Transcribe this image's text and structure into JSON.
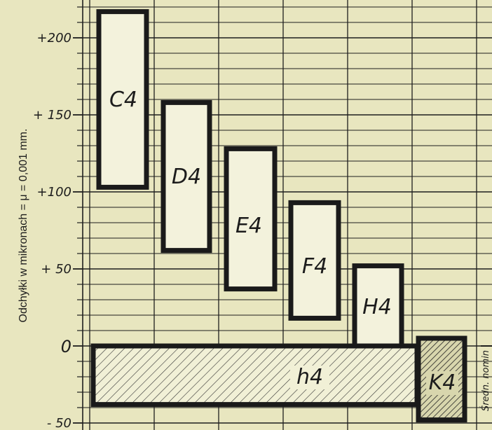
{
  "chart_data": {
    "type": "bar",
    "ylabel": "Odchyłki w mikronach = μ = 0,001 mm.",
    "ylim": [
      -50,
      220
    ],
    "yticks": [
      {
        "value": 200,
        "label": "+200"
      },
      {
        "value": 150,
        "label": "+ 150"
      },
      {
        "value": 100,
        "label": "+100"
      },
      {
        "value": 50,
        "label": "+ 50"
      },
      {
        "value": 0,
        "label": "0"
      },
      {
        "value": -50,
        "label": "- 50"
      }
    ],
    "bars": [
      {
        "label": "C4",
        "low": 103,
        "high": 217,
        "hatched": false
      },
      {
        "label": "D4",
        "low": 62,
        "high": 158,
        "hatched": false
      },
      {
        "label": "E4",
        "low": 37,
        "high": 128,
        "hatched": false
      },
      {
        "label": "F4",
        "low": 18,
        "high": 93,
        "hatched": false
      },
      {
        "label": "H4",
        "low": 0,
        "high": 52,
        "hatched": false
      },
      {
        "label": "h4",
        "low": -38,
        "high": 0,
        "hatched": true
      },
      {
        "label": "K4",
        "low": -48,
        "high": 5,
        "hatched": true
      }
    ],
    "side_note": "Średn. nomin",
    "grid": true
  }
}
